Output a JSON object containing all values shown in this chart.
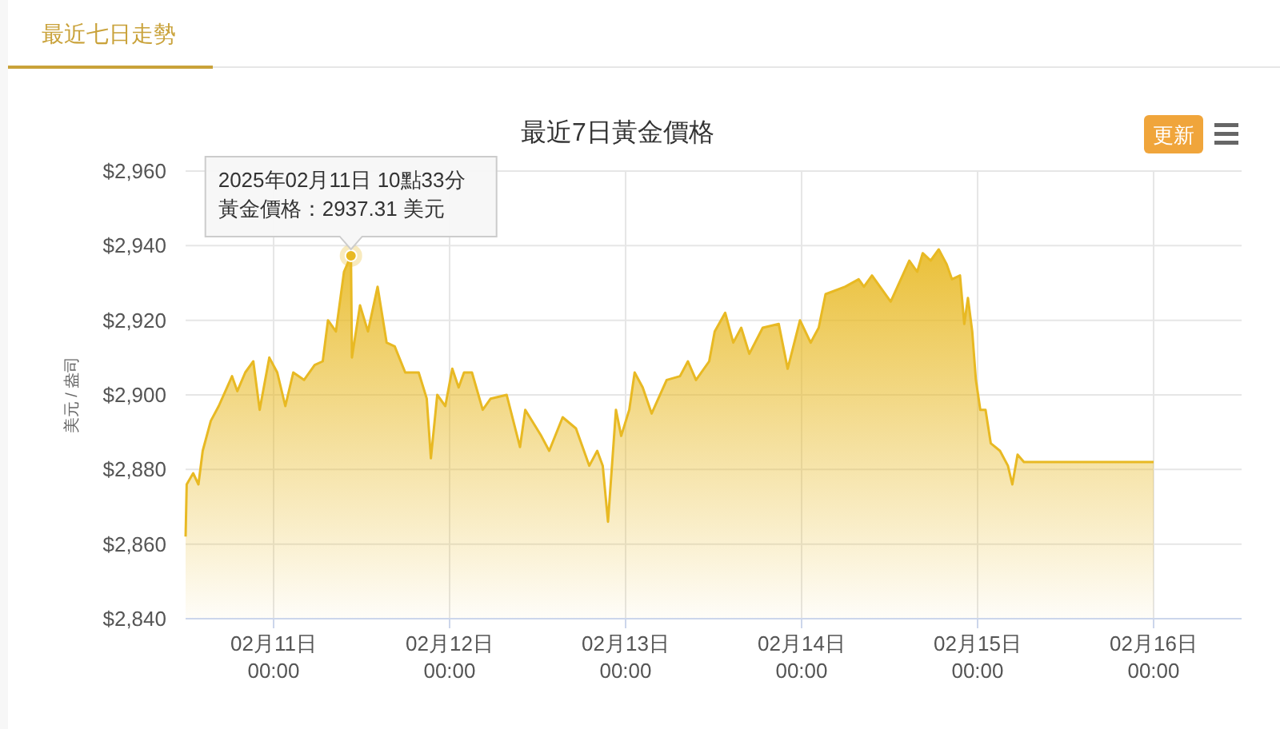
{
  "chart_data": {
    "type": "area",
    "title": "最近7日黃金價格",
    "subtitle": "最近七日走勢",
    "ylabel": "美元 / 盎司",
    "xlim": [
      "2025-02-10T12:00",
      "2025-02-16T12:00"
    ],
    "xticks": [
      {
        "value": "2025-02-11",
        "label": "02月11日\n00:00"
      },
      {
        "value": "2025-02-12",
        "label": "02月12日\n00:00"
      },
      {
        "value": "2025-02-13",
        "label": "02月13日\n00:00"
      },
      {
        "value": "2025-02-14",
        "label": "02月14日\n00:00"
      },
      {
        "value": "2025-02-15",
        "label": "02月15日\n00:00"
      },
      {
        "value": "2025-02-16",
        "label": "02月16日\n00:00"
      }
    ],
    "ylim": [
      2840,
      2960
    ],
    "yticks": [
      {
        "value": 2840,
        "label": "$2,840"
      },
      {
        "value": 2860,
        "label": "$2,860"
      },
      {
        "value": 2880,
        "label": "$2,880"
      },
      {
        "value": 2900,
        "label": "$2,900"
      },
      {
        "value": 2920,
        "label": "$2,920"
      },
      {
        "value": 2940,
        "label": "$2,940"
      },
      {
        "value": 2960,
        "label": "$2,960"
      }
    ],
    "grid": true,
    "series": [
      {
        "color": "#e8b923",
        "x": [
          "2025-02-10T12:00",
          "2025-02-10T12:09",
          "2025-02-10T13:02",
          "2025-02-10T13:45",
          "2025-02-10T14:20",
          "2025-02-10T15:26",
          "2025-02-10T16:31",
          "2025-02-10T18:20",
          "2025-02-10T19:03",
          "2025-02-10T20:08",
          "2025-02-10T21:14",
          "2025-02-10T22:06",
          "2025-02-10T23:25",
          "2025-02-11T00:30",
          "2025-02-11T01:36",
          "2025-02-11T02:41",
          "2025-02-11T04:09",
          "2025-02-11T05:36",
          "2025-02-11T06:42",
          "2025-02-11T07:25",
          "2025-02-11T08:30",
          "2025-02-11T09:36",
          "2025-02-11T10:33",
          "2025-02-11T10:41",
          "2025-02-11T11:47",
          "2025-02-11T12:52",
          "2025-02-11T14:11",
          "2025-02-11T15:25",
          "2025-02-11T16:31",
          "2025-02-11T17:57",
          "2025-02-11T19:47",
          "2025-02-11T20:53",
          "2025-02-11T21:27",
          "2025-02-11T22:19",
          "2025-02-11T23:25",
          "2025-02-12T00:22",
          "2025-02-12T01:14",
          "2025-02-12T01:58",
          "2025-02-12T03:03",
          "2025-02-12T04:31",
          "2025-02-12T05:36",
          "2025-02-12T07:47",
          "2025-02-12T09:36",
          "2025-02-12T10:19",
          "2025-02-12T12:30",
          "2025-02-12T13:35",
          "2025-02-12T15:25",
          "2025-02-12T17:14",
          "2025-02-12T19:03",
          "2025-02-12T20:08",
          "2025-02-12T20:53",
          "2025-02-12T21:36",
          "2025-02-12T22:41",
          "2025-02-12T23:24",
          "2025-02-13T00:30",
          "2025-02-13T01:14",
          "2025-02-13T02:20",
          "2025-02-13T03:33",
          "2025-02-13T05:36",
          "2025-02-13T07:25",
          "2025-02-13T08:30",
          "2025-02-13T09:36",
          "2025-02-13T11:24",
          "2025-02-13T12:09",
          "2025-02-13T13:35",
          "2025-02-13T14:41",
          "2025-02-13T15:46",
          "2025-02-13T16:52",
          "2025-02-13T18:42",
          "2025-02-13T20:53",
          "2025-02-13T22:06",
          "2025-02-13T23:47",
          "2025-02-14T01:14",
          "2025-02-14T02:20",
          "2025-02-14T03:16",
          "2025-02-14T05:57",
          "2025-02-14T07:47",
          "2025-02-14T08:30",
          "2025-02-14T09:36",
          "2025-02-14T12:09",
          "2025-02-14T14:41",
          "2025-02-14T15:46",
          "2025-02-14T16:31",
          "2025-02-14T17:36",
          "2025-02-14T18:42",
          "2025-02-14T19:47",
          "2025-02-14T20:30",
          "2025-02-14T21:36",
          "2025-02-14T22:11",
          "2025-02-14T22:41",
          "2025-02-14T23:16",
          "2025-02-14T23:46",
          "2025-02-15T00:22",
          "2025-02-15T01:05",
          "2025-02-15T01:48",
          "2025-02-15T03:03",
          "2025-02-15T04:08",
          "2025-02-15T04:44",
          "2025-02-15T05:27",
          "2025-02-15T06:19",
          "2025-02-16T00:00"
        ],
        "values": [
          2862,
          2876,
          2879,
          2876,
          2885,
          2893,
          2897,
          2905,
          2901,
          2906,
          2909,
          2896,
          2910,
          2906,
          2897,
          2906,
          2904,
          2908,
          2909,
          2920,
          2917,
          2933,
          2937.31,
          2910,
          2924,
          2917,
          2929,
          2914,
          2913,
          2906,
          2906,
          2899,
          2883,
          2900,
          2897,
          2907,
          2902,
          2906,
          2906,
          2896,
          2899,
          2900,
          2886,
          2896,
          2889,
          2885,
          2894,
          2891,
          2881,
          2885,
          2881,
          2866,
          2896,
          2889,
          2896,
          2906,
          2902,
          2895,
          2904,
          2905,
          2909,
          2904,
          2909,
          2917,
          2922,
          2914,
          2918,
          2911,
          2918,
          2919,
          2907,
          2920,
          2914,
          2918,
          2927,
          2929,
          2931,
          2929,
          2932,
          2925,
          2936,
          2933,
          2938,
          2936,
          2939,
          2935,
          2931,
          2932,
          2919,
          2926,
          2917,
          2904,
          2896,
          2896,
          2887,
          2885,
          2881,
          2876,
          2884,
          2882,
          2882
        ]
      }
    ],
    "annotations": [
      "2025年02月11日 10點33分",
      {
        "text": "黃金價格：2937.31 美元",
        "x": "2025-02-11T10:33",
        "y": 2937.31
      },
      "更新"
    ]
  }
}
